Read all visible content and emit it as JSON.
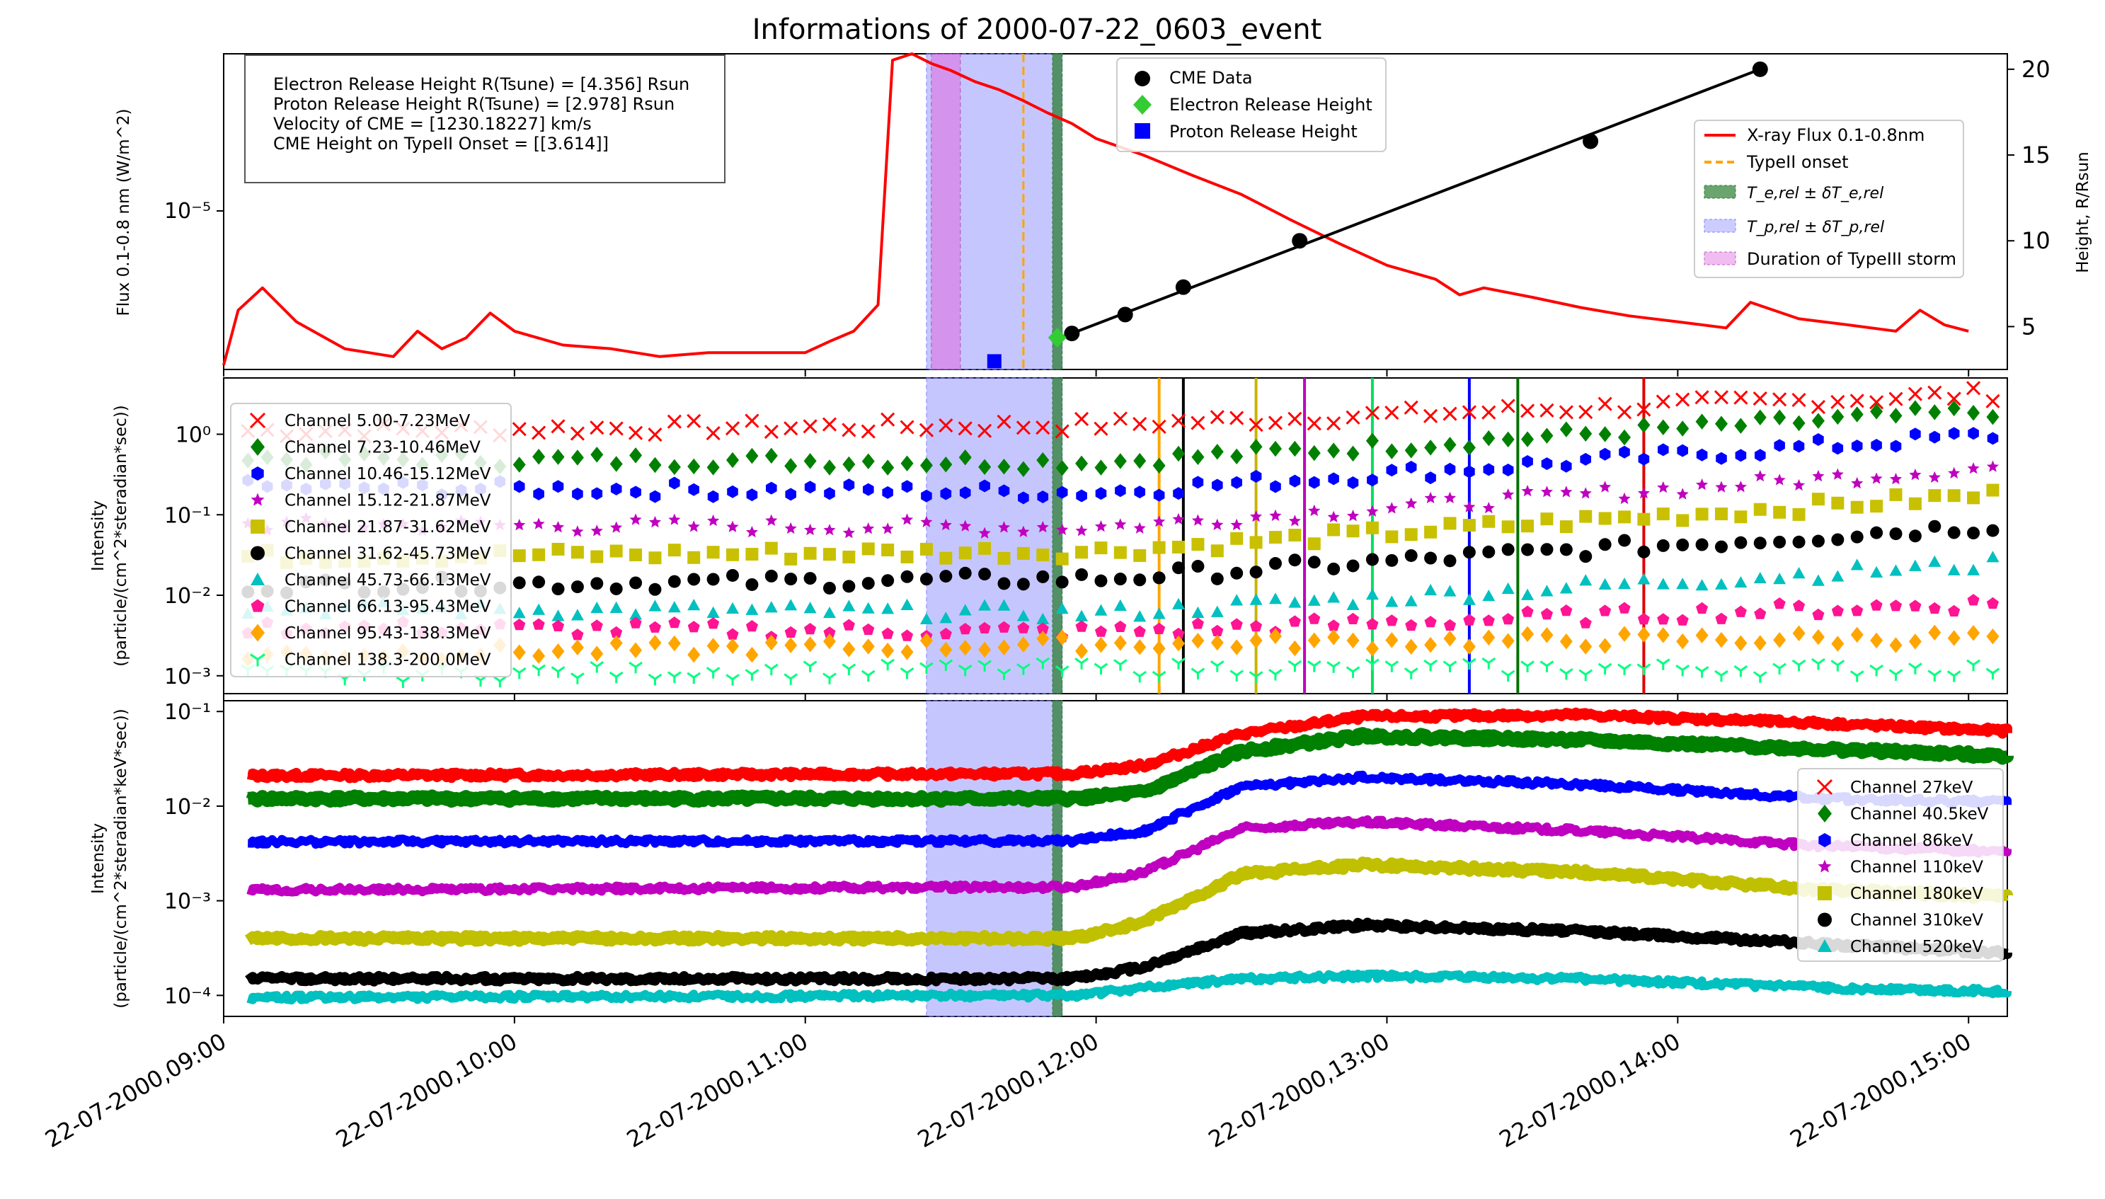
{
  "title": "Informations of 2000-07-22_0603_event",
  "colors": {
    "xray": "#ff0000",
    "cme": "#000000",
    "electron": "#33cc33",
    "proton": "#0000ff",
    "typeII": "#ffa500",
    "te_band": "#2e7d32",
    "tp_band": "#8080ff",
    "storm_band": "#e06be0"
  },
  "x_axis": {
    "start": "22-07-2000,09:00",
    "end": "22-07-2000,15:08",
    "ticks": [
      "22-07-2000,09:00",
      "22-07-2000,10:00",
      "22-07-2000,11:00",
      "22-07-2000,12:00",
      "22-07-2000,13:00",
      "22-07-2000,14:00",
      "22-07-2000,15:00"
    ]
  },
  "panel1": {
    "ylabel_left": "Flux 0.1-0.8 nm (W/m^2)",
    "ylabel_right": "Height, R/Rsun",
    "left_ticks": [
      "10⁻⁵"
    ],
    "right_ticks": [
      "5",
      "10",
      "15",
      "20"
    ],
    "info_lines": [
      "Electron Release Height R(Tsune) = [4.356] Rsun",
      "Proton Release Height R(Tsune) = [2.978] Rsun",
      "Velocity of CME = [1230.18227] km/s",
      "CME Height on TypeII Onset = [[3.614]]"
    ],
    "legend_markers": [
      "CME Data",
      "Electron Release Height",
      "Proton Release Height"
    ],
    "legend_lines": [
      "X-ray Flux 0.1-0.8nm",
      "TypeII onset",
      "T_e,rel ± δT_e,rel",
      "T_p,rel ± δT_p,rel",
      "Duration of TypeIII storm"
    ]
  },
  "panel2": {
    "ylabel": [
      "Intensity",
      "(particle/(cm^2*steradian*sec))"
    ],
    "ticks": [
      "10⁰",
      "10⁻¹",
      "10⁻²",
      "10⁻³"
    ],
    "legend": [
      "Channel 5.00-7.23MeV",
      "Channel 7.23-10.46MeV",
      "Channel 10.46-15.12MeV",
      "Channel 15.12-21.87MeV",
      "Channel 21.87-31.62MeV",
      "Channel 31.62-45.73MeV",
      "Channel 45.73-66.13MeV",
      "Channel 66.13-95.43MeV",
      "Channel 95.43-138.3MeV",
      "Channel 138.3-200.0MeV"
    ]
  },
  "panel3": {
    "ylabel": [
      "Intensity",
      "(particle/(cm^2*steradian*keV*sec))"
    ],
    "ticks": [
      "10⁻¹",
      "10⁻²",
      "10⁻³",
      "10⁻⁴"
    ],
    "legend": [
      "Channel 27keV",
      "Channel 40.5keV",
      "Channel 86keV",
      "Channel 110keV",
      "Channel 180keV",
      "Channel 310keV",
      "Channel 520keV"
    ]
  },
  "chart_data": [
    {
      "type": "line",
      "title": "Informations of 2000-07-22_0603_event",
      "xlabel": "",
      "ylabel": "Flux 0.1-0.8 nm (W/m^2)",
      "ylabel_right": "Height, R/Rsun",
      "yscale": "log",
      "ylim": [
        2.6e-06,
        3.8e-05
      ],
      "ylim_right": [
        2.5,
        20.9
      ],
      "series": [
        {
          "name": "X-ray Flux 0.1-0.8nm",
          "x": [
            "09:00",
            "09:03",
            "09:08",
            "09:15",
            "09:25",
            "09:35",
            "09:40",
            "09:45",
            "09:50",
            "09:55",
            "10:00",
            "10:10",
            "10:20",
            "10:30",
            "10:40",
            "10:50",
            "11:00",
            "11:05",
            "11:10",
            "11:15",
            "11:18",
            "11:22",
            "11:26",
            "11:30",
            "11:35",
            "11:40",
            "11:45",
            "11:50",
            "11:55",
            "12:00",
            "12:10",
            "12:20",
            "12:30",
            "12:40",
            "12:50",
            "13:00",
            "13:10",
            "13:15",
            "13:20",
            "13:30",
            "13:40",
            "13:50",
            "14:00",
            "14:10",
            "14:15",
            "14:25",
            "14:35",
            "14:45",
            "14:50",
            "14:55",
            "15:00"
          ],
          "values": [
            2.7e-06,
            4.3e-06,
            5.2e-06,
            3.9e-06,
            3.1e-06,
            2.9e-06,
            3.6e-06,
            3.1e-06,
            3.4e-06,
            4.2e-06,
            3.6e-06,
            3.2e-06,
            3.1e-06,
            2.9e-06,
            3e-06,
            3e-06,
            3e-06,
            3.3e-06,
            3.6e-06,
            4.5e-06,
            3.6e-05,
            3.8e-05,
            3.5e-05,
            3.3e-05,
            3e-05,
            2.8e-05,
            2.55e-05,
            2.3e-05,
            2.1e-05,
            1.85e-05,
            1.6e-05,
            1.35e-05,
            1.15e-05,
            9.3e-06,
            7.6e-06,
            6.3e-06,
            5.6e-06,
            4.9e-06,
            5.2e-06,
            4.8e-06,
            4.4e-06,
            4.1e-06,
            3.9e-06,
            3.7e-06,
            4.6e-06,
            4e-06,
            3.8e-06,
            3.6e-06,
            4.3e-06,
            3.8e-06,
            3.6e-06
          ]
        },
        {
          "name": "CME Data",
          "axis": "right",
          "x": [
            "11:55",
            "12:06",
            "12:18",
            "12:42",
            "13:42",
            "14:17"
          ],
          "values": [
            4.6,
            5.7,
            7.3,
            10.0,
            15.8,
            20.0
          ]
        },
        {
          "name": "Electron Release Height",
          "axis": "right",
          "x": [
            "11:52"
          ],
          "values": [
            4.356
          ]
        },
        {
          "name": "Proton Release Height",
          "axis": "right",
          "x": [
            "11:39"
          ],
          "values": [
            2.978
          ]
        }
      ]
    },
    {
      "type": "scatter",
      "ylabel": "Intensity (particle/(cm^2*steradian*sec))",
      "yscale": "log",
      "ylim": [
        0.0006,
        5
      ],
      "series": [
        {
          "name": "Channel 5.00-7.23MeV",
          "values": [
            1.1,
            1.3,
            3.2
          ]
        },
        {
          "name": "Channel 7.23-10.46MeV",
          "values": [
            0.5,
            0.45,
            2.0
          ]
        },
        {
          "name": "Channel 10.46-15.12MeV",
          "values": [
            0.22,
            0.19,
            1.0
          ]
        },
        {
          "name": "Channel 15.12-21.87MeV",
          "values": [
            0.075,
            0.07,
            0.4
          ]
        },
        {
          "name": "Channel 21.87-31.62MeV",
          "values": [
            0.03,
            0.035,
            0.18
          ]
        },
        {
          "name": "Channel 31.62-45.73MeV",
          "values": [
            0.013,
            0.016,
            0.075
          ]
        },
        {
          "name": "Channel 45.73-66.13MeV",
          "values": [
            0.007,
            0.006,
            0.025
          ]
        },
        {
          "name": "Channel 66.13-95.43MeV",
          "values": [
            0.004,
            0.0035,
            0.008
          ]
        },
        {
          "name": "Channel 95.43-138.3MeV",
          "values": [
            0.0018,
            0.0025,
            0.003
          ]
        },
        {
          "name": "Channel 138.3-200.0MeV",
          "values": [
            0.001,
            0.0012,
            0.0012
          ]
        }
      ],
      "series_x": [
        "09:05",
        "12:00",
        "15:08"
      ]
    },
    {
      "type": "line",
      "ylabel": "Intensity (particle/(cm^2*steradian*keV*sec))",
      "yscale": "log",
      "ylim": [
        6e-05,
        0.13
      ],
      "series_x": [
        "09:05",
        "11:55",
        "12:10",
        "12:30",
        "12:55",
        "13:40",
        "14:30",
        "15:08"
      ],
      "series": [
        {
          "name": "Channel 27keV",
          "values": [
            0.021,
            0.022,
            0.027,
            0.058,
            0.088,
            0.092,
            0.075,
            0.062
          ]
        },
        {
          "name": "Channel 40.5keV",
          "values": [
            0.012,
            0.012,
            0.014,
            0.038,
            0.055,
            0.05,
            0.04,
            0.034
          ]
        },
        {
          "name": "Channel 86keV",
          "values": [
            0.0042,
            0.0043,
            0.0055,
            0.016,
            0.02,
            0.017,
            0.012,
            0.011
          ]
        },
        {
          "name": "Channel 110keV",
          "values": [
            0.0013,
            0.0014,
            0.002,
            0.0058,
            0.0068,
            0.0055,
            0.0038,
            0.0033
          ]
        },
        {
          "name": "Channel 180keV",
          "values": [
            0.0004,
            0.0004,
            0.0006,
            0.0019,
            0.0024,
            0.002,
            0.0013,
            0.0011
          ]
        },
        {
          "name": "Channel 310keV",
          "values": [
            0.00015,
            0.00015,
            0.0002,
            0.00045,
            0.00055,
            0.00048,
            0.00035,
            0.00028
          ]
        },
        {
          "name": "Channel 520keV",
          "values": [
            9.5e-05,
            0.0001,
            0.00012,
            0.00015,
            0.00016,
            0.00015,
            0.00012,
            0.00011
          ]
        }
      ]
    }
  ],
  "events": {
    "proton_band": [
      "11:25",
      "11:53"
    ],
    "electron_band": [
      "11:51",
      "11:53"
    ],
    "storm_band": [
      "11:26",
      "11:32"
    ],
    "typeII": "11:45",
    "panel2_vlines": [
      {
        "time": "12:13",
        "color": "#ffa500"
      },
      {
        "time": "12:18",
        "color": "#000000"
      },
      {
        "time": "12:33",
        "color": "#c8b400"
      },
      {
        "time": "12:43",
        "color": "#c000c0"
      },
      {
        "time": "12:57",
        "color": "#00e060"
      },
      {
        "time": "13:17",
        "color": "#0000ff"
      },
      {
        "time": "13:27",
        "color": "#007000"
      },
      {
        "time": "13:53",
        "color": "#e00000"
      }
    ]
  }
}
